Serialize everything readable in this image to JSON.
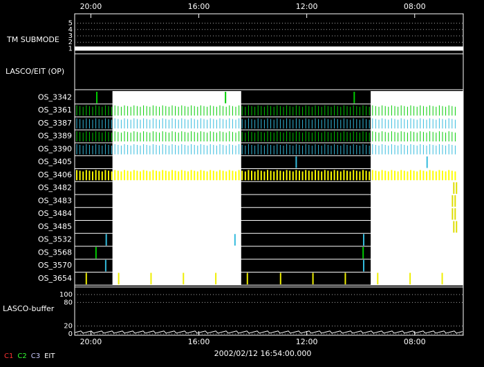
{
  "chart_data": {
    "type": "timeline",
    "xlim": [
      20.6,
      6.2
    ],
    "xticks": [
      {
        "value": 20,
        "label": "20:00"
      },
      {
        "value": 16,
        "label": "16:00"
      },
      {
        "value": 12,
        "label": "12:00"
      },
      {
        "value": 8,
        "label": "08:00"
      }
    ],
    "submode": {
      "label": "TM SUBMODE",
      "ylim": [
        0.5,
        5.5
      ],
      "yticks": [
        1,
        2,
        3,
        4,
        5
      ],
      "value": 1
    },
    "op": {
      "label": "LASCO/EIT (OP)"
    },
    "white_spans": [
      [
        19.2,
        14.43
      ],
      [
        9.63,
        6.2
      ]
    ],
    "rows": [
      {
        "label": "OS_3342",
        "color": "#00cc00",
        "events": [
          19.78,
          15.01,
          10.24
        ]
      },
      {
        "label": "OS_3361",
        "color": "#00cc00",
        "dense": true
      },
      {
        "label": "OS_3387",
        "color": "#33bbdd",
        "dense": true
      },
      {
        "label": "OS_3389",
        "color": "#00cc00",
        "dense": true
      },
      {
        "label": "OS_3390",
        "color": "#33bbdd",
        "dense": true
      },
      {
        "label": "OS_3405",
        "color": "#33bbdd",
        "events": [
          12.39,
          7.54
        ]
      },
      {
        "label": "OS_3406",
        "color": "#ffff00",
        "dense": true
      },
      {
        "label": "OS_3482",
        "color": "#dddd00",
        "events": [
          6.55,
          6.45
        ]
      },
      {
        "label": "OS_3483",
        "color": "#dddd00",
        "events": [
          6.6,
          6.5
        ]
      },
      {
        "label": "OS_3484",
        "color": "#dddd00",
        "events": [
          6.6,
          6.5
        ]
      },
      {
        "label": "OS_3485",
        "color": "#dddd00",
        "events": [
          6.55,
          6.45
        ]
      },
      {
        "label": "OS_3532",
        "color": "#33bbdd",
        "events": [
          19.43,
          14.66,
          9.89
        ]
      },
      {
        "label": "OS_3568",
        "color": "#00cc00",
        "events": [
          19.81,
          9.91
        ]
      },
      {
        "label": "OS_3570",
        "color": "#33bbdd",
        "events": [
          19.45,
          9.89
        ]
      },
      {
        "label": "OS_3654",
        "color": "#eeee00",
        "events": [
          20.17,
          18.97,
          17.77,
          16.57,
          15.37,
          14.2,
          12.97,
          11.77,
          10.57,
          9.37,
          8.17,
          6.98
        ]
      }
    ],
    "buffer": {
      "label": "LASCO-buffer",
      "ylim": [
        0,
        100
      ],
      "yticks": [
        0,
        20,
        80,
        100
      ]
    },
    "timestamp": "2002/02/12 16:54:00.000",
    "legend": [
      {
        "name": "C1",
        "color": "#ff3333"
      },
      {
        "name": "C2",
        "color": "#33ff33"
      },
      {
        "name": "C3",
        "color": "#ccccff"
      },
      {
        "name": "EIT",
        "color": "#ffffff"
      }
    ]
  }
}
